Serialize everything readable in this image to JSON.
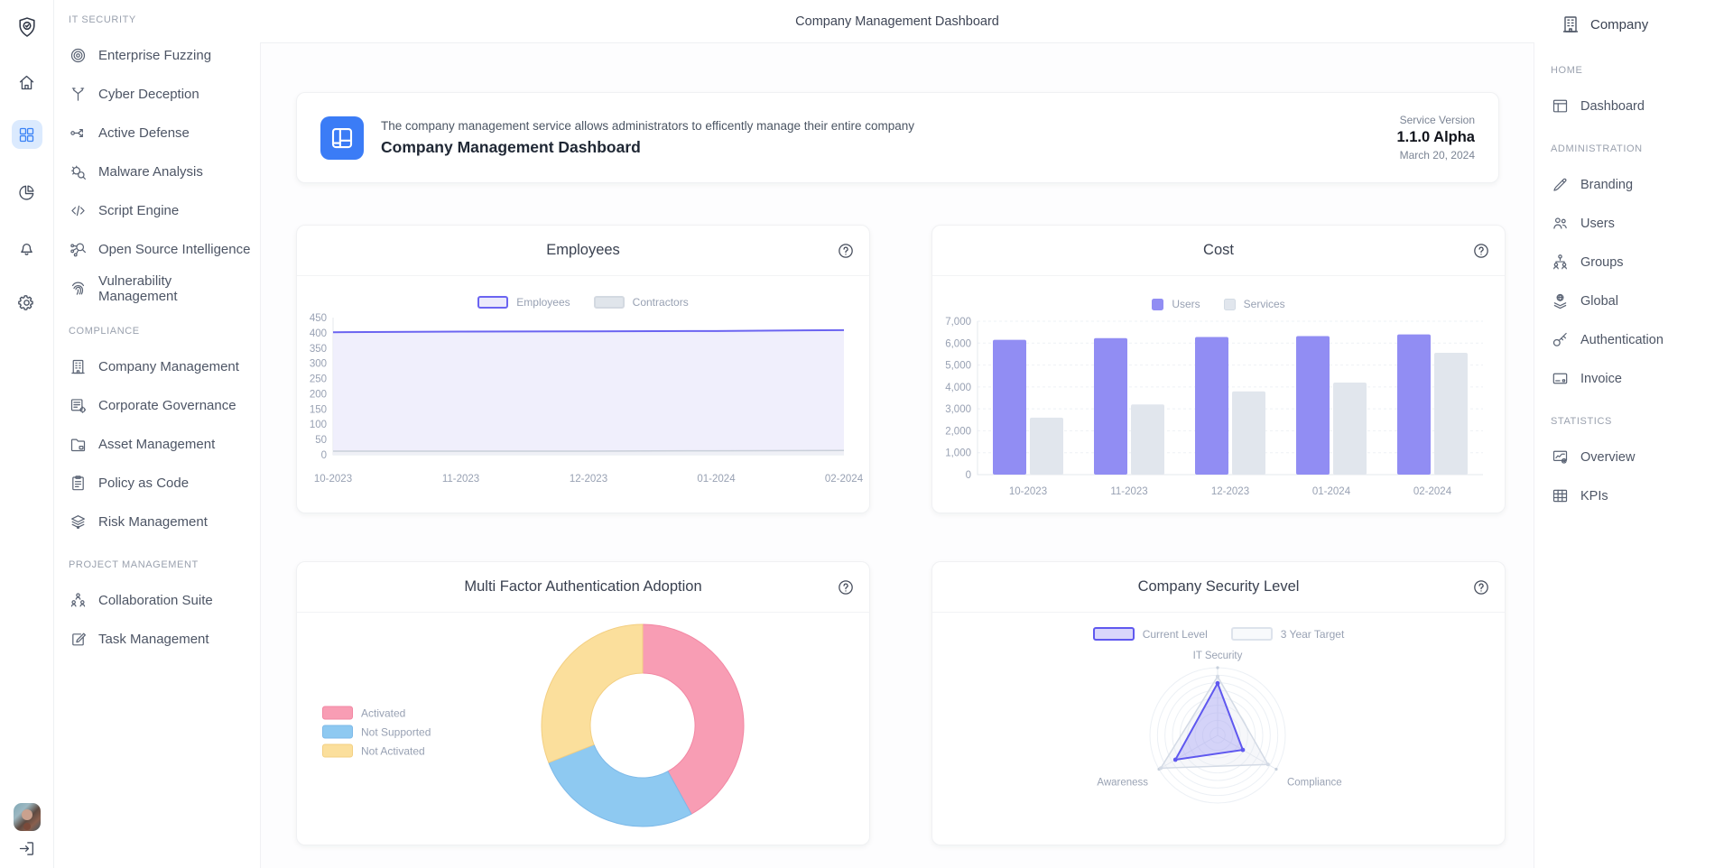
{
  "app": {
    "header_title": "Company Management Dashboard"
  },
  "icon_rail": {
    "logo": "shield-check",
    "items": [
      {
        "icon": "home",
        "active": false
      },
      {
        "icon": "grid",
        "active": true
      },
      {
        "icon": "pie-chart",
        "active": false
      },
      {
        "icon": "bell",
        "active": false
      },
      {
        "icon": "gear",
        "active": false
      }
    ],
    "avatar": "user-avatar",
    "logout": "logout"
  },
  "left_nav": {
    "sections": [
      {
        "label": "IT SECURITY",
        "items": [
          {
            "label": "Enterprise Fuzzing",
            "icon": "target"
          },
          {
            "label": "Cyber Deception",
            "icon": "branch"
          },
          {
            "label": "Active Defense",
            "icon": "flow"
          },
          {
            "label": "Malware Analysis",
            "icon": "bug-search"
          },
          {
            "label": "Script Engine",
            "icon": "code"
          },
          {
            "label": "Open Source Intelligence",
            "icon": "search-network"
          },
          {
            "label": "Vulnerability Management",
            "icon": "fingerprint"
          }
        ]
      },
      {
        "label": "COMPLIANCE",
        "items": [
          {
            "label": "Company Management",
            "icon": "building"
          },
          {
            "label": "Corporate Governance",
            "icon": "list-gear"
          },
          {
            "label": "Asset Management",
            "icon": "folder"
          },
          {
            "label": "Policy as Code",
            "icon": "clipboard"
          },
          {
            "label": "Risk Management",
            "icon": "layers"
          }
        ]
      },
      {
        "label": "PROJECT MANAGEMENT",
        "items": [
          {
            "label": "Collaboration Suite",
            "icon": "people-group"
          },
          {
            "label": "Task Management",
            "icon": "task-edit"
          }
        ]
      }
    ]
  },
  "right_nav": {
    "company_label": "Company",
    "company_icon": "building",
    "sections": [
      {
        "label": "HOME",
        "items": [
          {
            "label": "Dashboard",
            "icon": "window"
          }
        ]
      },
      {
        "label": "ADMINISTRATION",
        "items": [
          {
            "label": "Branding",
            "icon": "pen"
          },
          {
            "label": "Users",
            "icon": "users"
          },
          {
            "label": "Groups",
            "icon": "org"
          },
          {
            "label": "Global",
            "icon": "global"
          },
          {
            "label": "Authentication",
            "icon": "key"
          },
          {
            "label": "Invoice",
            "icon": "card"
          }
        ]
      },
      {
        "label": "STATISTICS",
        "items": [
          {
            "label": "Overview",
            "icon": "monitor-stats"
          },
          {
            "label": "KPIs",
            "icon": "table"
          }
        ]
      }
    ]
  },
  "banner": {
    "description": "The company management service allows administrators to efficently manage their entire company",
    "title": "Company Management Dashboard",
    "service_version_label": "Service Version",
    "version": "1.1.0 Alpha",
    "date": "March 20, 2024",
    "icon_color": "#3b7cf6"
  },
  "chart_data": [
    {
      "id": "employees",
      "type": "area",
      "title": "Employees",
      "categories": [
        "10-2023",
        "11-2023",
        "12-2023",
        "01-2024",
        "02-2024"
      ],
      "series": [
        {
          "name": "Employees",
          "values": [
            402,
            404,
            405,
            406,
            409
          ],
          "color": "#6b64f1",
          "fill": "#edecfc",
          "legend_border": "#6b64f1",
          "legend_fill": "#eceafb"
        },
        {
          "name": "Contractors",
          "values": [
            12,
            12,
            12,
            13,
            14
          ],
          "color": "#c9cfd9",
          "fill": "#eef0f4",
          "legend_border": "#d3d9e1",
          "legend_fill": "#e0e5eb"
        }
      ],
      "ylim": [
        0,
        450
      ],
      "ystep": 50,
      "grid": false,
      "legend_position": "top"
    },
    {
      "id": "cost",
      "type": "bar",
      "title": "Cost",
      "categories": [
        "10-2023",
        "11-2023",
        "12-2023",
        "01-2024",
        "02-2024"
      ],
      "series": [
        {
          "name": "Users",
          "values": [
            6150,
            6230,
            6280,
            6320,
            6400
          ],
          "color": "#918df3"
        },
        {
          "name": "Services",
          "values": [
            2600,
            3200,
            3800,
            4200,
            5560
          ],
          "color": "#e1e6ed",
          "legend_border": "#d3dbe4"
        }
      ],
      "ylim": [
        0,
        7000
      ],
      "ystep": 1000,
      "grid": true,
      "legend_position": "top"
    },
    {
      "id": "mfa",
      "type": "donut",
      "title": "Multi Factor Authentication Adoption",
      "slices": [
        {
          "label": "Activated",
          "value": 42,
          "color": "#f89db4",
          "edge": "#f287a3"
        },
        {
          "label": "Not Supported",
          "value": 27,
          "color": "#8ec9f1",
          "edge": "#7db9e8"
        },
        {
          "label": "Not Activated",
          "value": 31,
          "color": "#fbdf9c",
          "edge": "#f3cf82"
        }
      ],
      "legend_position": "left"
    },
    {
      "id": "security",
      "type": "radar",
      "title": "Company Security Level",
      "axes": [
        "IT Security",
        "Compliance",
        "Awareness"
      ],
      "max": 100,
      "series": [
        {
          "name": "Current Level",
          "values": [
            77,
            43,
            72
          ],
          "color": "#5f58ef",
          "fill": "rgba(126,120,245,0.28)",
          "legend_border": "#5f58ef",
          "legend_fill": "#d9d6fb"
        },
        {
          "name": "3 Year Target",
          "values": [
            87,
            86,
            97
          ],
          "color": "#d3dae5",
          "fill": "rgba(228,233,241,0.35)",
          "legend_border": "#dde3ec",
          "legend_fill": "#f8fafc"
        }
      ],
      "legend_position": "top"
    }
  ],
  "colors": {
    "accent_blue": "#3b82f6",
    "active_bg": "#dbeafe",
    "purple": "#6b64f1",
    "axis_text": "#98a1b3",
    "axis_line": "#e4e8ee",
    "card_border": "#f0f1f3"
  }
}
